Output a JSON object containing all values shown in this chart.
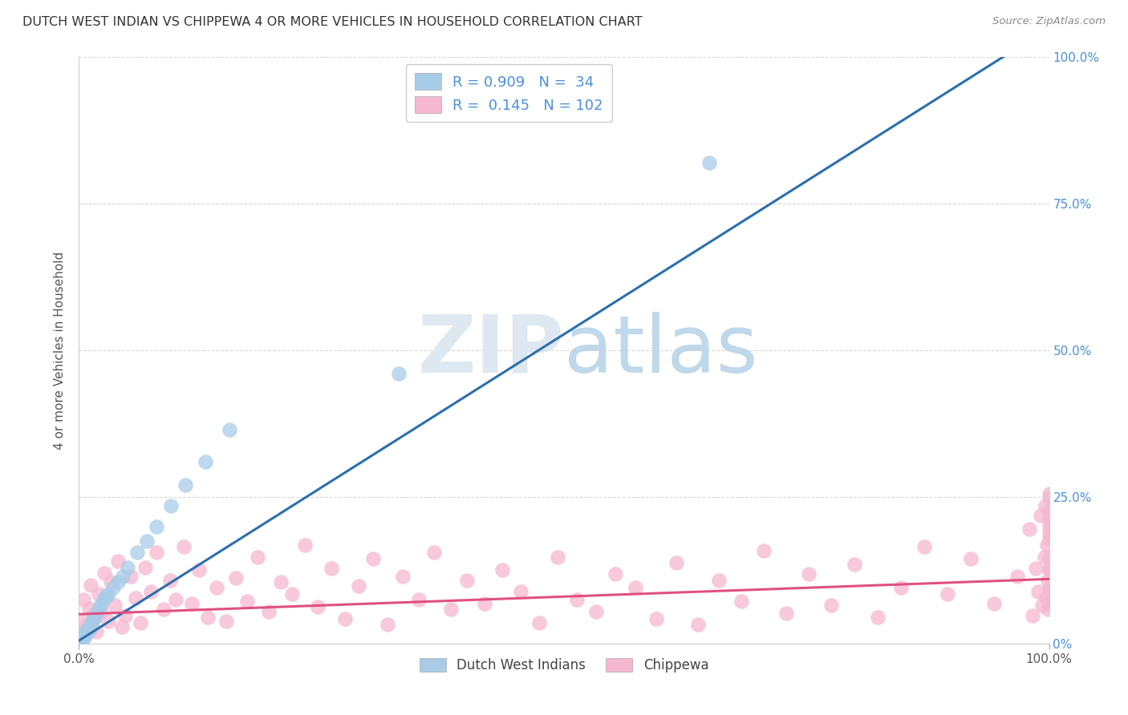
{
  "title": "DUTCH WEST INDIAN VS CHIPPEWA 4 OR MORE VEHICLES IN HOUSEHOLD CORRELATION CHART",
  "source": "Source: ZipAtlas.com",
  "ylabel": "4 or more Vehicles in Household",
  "blue_R": 0.909,
  "blue_N": 34,
  "pink_R": 0.145,
  "pink_N": 102,
  "blue_color": "#a8cce8",
  "blue_line_color": "#2c6fad",
  "pink_color": "#f5b8ce",
  "pink_line_color": "#e05080",
  "legend_blue_label": "Dutch West Indians",
  "legend_pink_label": "Chippewa",
  "watermark_zip": "ZIP",
  "watermark_atlas": "atlas",
  "background_color": "#ffffff",
  "grid_color": "#cccccc",
  "blue_scatter_x": [
    0.002,
    0.003,
    0.004,
    0.005,
    0.006,
    0.007,
    0.008,
    0.009,
    0.01,
    0.011,
    0.012,
    0.013,
    0.014,
    0.015,
    0.016,
    0.018,
    0.02,
    0.022,
    0.025,
    0.028,
    0.03,
    0.035,
    0.04,
    0.045,
    0.05,
    0.06,
    0.07,
    0.08,
    0.095,
    0.11,
    0.13,
    0.155,
    0.33,
    0.65
  ],
  "blue_scatter_y": [
    0.005,
    0.01,
    0.008,
    0.015,
    0.012,
    0.018,
    0.02,
    0.025,
    0.022,
    0.028,
    0.03,
    0.035,
    0.038,
    0.042,
    0.045,
    0.05,
    0.058,
    0.065,
    0.075,
    0.08,
    0.085,
    0.095,
    0.105,
    0.115,
    0.13,
    0.155,
    0.175,
    0.2,
    0.235,
    0.27,
    0.31,
    0.365,
    0.46,
    0.82
  ],
  "pink_scatter_x": [
    0.003,
    0.005,
    0.007,
    0.01,
    0.012,
    0.015,
    0.018,
    0.02,
    0.023,
    0.026,
    0.03,
    0.033,
    0.037,
    0.04,
    0.044,
    0.048,
    0.053,
    0.058,
    0.063,
    0.068,
    0.074,
    0.08,
    0.087,
    0.094,
    0.1,
    0.108,
    0.116,
    0.124,
    0.133,
    0.142,
    0.152,
    0.162,
    0.173,
    0.184,
    0.196,
    0.208,
    0.22,
    0.233,
    0.246,
    0.26,
    0.274,
    0.288,
    0.303,
    0.318,
    0.334,
    0.35,
    0.366,
    0.383,
    0.4,
    0.418,
    0.436,
    0.455,
    0.474,
    0.493,
    0.513,
    0.533,
    0.553,
    0.574,
    0.595,
    0.616,
    0.638,
    0.66,
    0.683,
    0.706,
    0.729,
    0.752,
    0.775,
    0.799,
    0.823,
    0.847,
    0.871,
    0.895,
    0.919,
    0.943,
    0.967,
    0.98,
    0.983,
    0.986,
    0.989,
    0.991,
    0.993,
    0.995,
    0.996,
    0.997,
    0.998,
    0.999,
    0.999,
    1.0,
    1.0,
    1.0,
    1.0,
    1.0,
    1.0,
    1.0,
    1.0,
    1.0,
    1.0,
    1.0,
    1.0,
    1.0,
    1.0,
    1.0
  ],
  "pink_scatter_y": [
    0.04,
    0.075,
    0.03,
    0.06,
    0.1,
    0.05,
    0.02,
    0.085,
    0.055,
    0.12,
    0.038,
    0.105,
    0.065,
    0.14,
    0.028,
    0.048,
    0.115,
    0.078,
    0.035,
    0.13,
    0.088,
    0.155,
    0.058,
    0.108,
    0.075,
    0.165,
    0.068,
    0.125,
    0.045,
    0.095,
    0.038,
    0.112,
    0.072,
    0.148,
    0.055,
    0.105,
    0.085,
    0.168,
    0.062,
    0.128,
    0.042,
    0.098,
    0.145,
    0.032,
    0.115,
    0.075,
    0.155,
    0.058,
    0.108,
    0.068,
    0.125,
    0.088,
    0.035,
    0.148,
    0.075,
    0.055,
    0.118,
    0.095,
    0.042,
    0.138,
    0.032,
    0.108,
    0.072,
    0.158,
    0.052,
    0.118,
    0.065,
    0.135,
    0.045,
    0.095,
    0.165,
    0.085,
    0.145,
    0.068,
    0.115,
    0.195,
    0.048,
    0.128,
    0.088,
    0.218,
    0.065,
    0.148,
    0.235,
    0.078,
    0.168,
    0.108,
    0.058,
    0.205,
    0.125,
    0.185,
    0.255,
    0.075,
    0.148,
    0.228,
    0.095,
    0.178,
    0.248,
    0.068,
    0.215,
    0.128,
    0.195,
    0.088
  ]
}
